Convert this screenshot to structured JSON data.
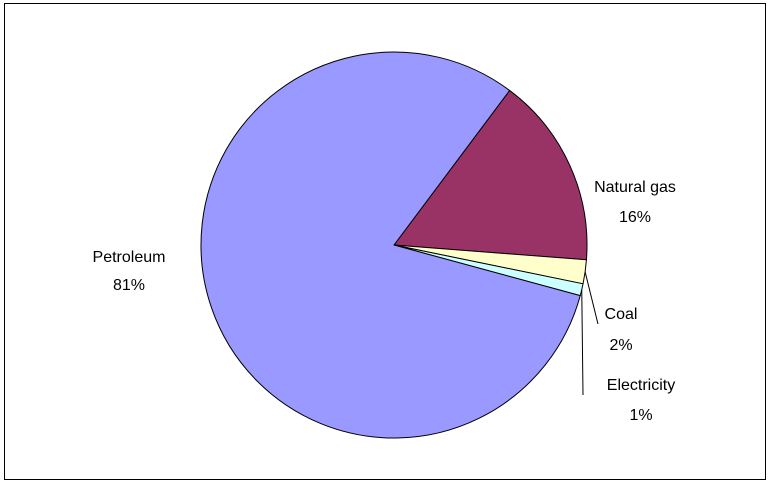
{
  "chart_data": {
    "type": "pie",
    "title": "",
    "slices": [
      {
        "label": "Natural gas",
        "value": 16,
        "display": "16%",
        "color": "#993366"
      },
      {
        "label": "Coal",
        "value": 2,
        "display": "2%",
        "color": "#FFFFCC"
      },
      {
        "label": "Electricity",
        "value": 1,
        "display": "1%",
        "color": "#CCFFFF"
      },
      {
        "label": "Petroleum",
        "value": 81,
        "display": "81%",
        "color": "#9999FF"
      }
    ],
    "legend": "none",
    "data_labels": "category name and percentage"
  }
}
